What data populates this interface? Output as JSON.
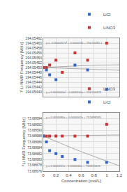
{
  "chart_data": [
    {
      "type": "scatter",
      "ylabel": "7-Li NMR Frequency [MHz]",
      "xlim": [
        0,
        1.2
      ],
      "xticks": [
        0,
        0.2,
        0.4,
        0.6,
        0.8,
        1,
        1.2
      ],
      "ylim": [
        194.05438,
        194.05462
      ],
      "yticks": [
        {
          "value": 194.0544,
          "label": "194.05440"
        },
        194.05442,
        194.05444,
        194.05446,
        194.05448,
        {
          "value": 194.0545,
          "label": "194.05450"
        },
        194.05452,
        194.05454,
        194.05456,
        194.05458,
        {
          "value": 194.0546,
          "label": "194.05460"
        },
        194.05462
      ],
      "tick_labels": "y",
      "grid": true,
      "legend": "right",
      "annotations": [
        "y = -0.0000057x² + 0.000016x + 194.55460·1",
        "y = 0.0000006x² - 0.0000100x + 194.554473"
      ],
      "series": [
        {
          "type": "line",
          "color": "#aaaaaa",
          "x": [
            0,
            0.1,
            0.2,
            0.3,
            0.4,
            0.5,
            0.6,
            0.7,
            0.8,
            0.9,
            1.0,
            1.1,
            1.2
          ],
          "values": [
            194.0545,
            194.054499006,
            194.054498024,
            194.054497054,
            194.054496096,
            194.05449515,
            194.054494216,
            194.054493294,
            194.054492384,
            194.054491486,
            194.0544906,
            194.054489726,
            194.054488864
          ]
        },
        {
          "type": "line",
          "color": "#aaaaaa",
          "x": [
            0,
            0.1,
            0.2,
            0.3,
            0.4,
            0.5,
            0.6,
            0.7,
            0.8,
            0.9,
            1.0,
            1.1,
            1.2
          ],
          "values": [
            194.0545,
            194.054501543,
            194.054502972,
            194.054504287,
            194.054505488,
            194.054506575,
            194.054507548,
            194.054508407,
            194.054509152,
            194.054509783,
            194.0545103,
            194.054510703,
            194.054510992
          ]
        },
        {
          "name": "LiCl",
          "type": "scatter",
          "marker": "square",
          "color": "#3366cc",
          "x": [
            0.0,
            0.05,
            0.1,
            0.2,
            0.5,
            0.7,
            1.0
          ],
          "values": [
            194.0545,
            194.05449,
            194.05447,
            194.05445,
            194.05451,
            194.05449,
            194.05441
          ]
        },
        {
          "name": "LiNO3",
          "type": "scatter",
          "marker": "square",
          "color": "#cc3333",
          "x": [
            0.0,
            0.05,
            0.1,
            0.2,
            0.3,
            0.5,
            0.7,
            1.0
          ],
          "values": [
            194.0545,
            194.0545,
            194.05451,
            194.05453,
            194.05448,
            194.05456,
            194.05453,
            194.0546
          ]
        }
      ]
    },
    {
      "type": "scatter",
      "ylabel": "⁶Li NMR Frequency [MHz]",
      "xlabel": "Concentration [mol/L]",
      "xlim": [
        0,
        1.2
      ],
      "xticks": [
        0,
        0.2,
        0.4,
        0.6,
        0.8,
        1,
        1.2
      ],
      "ylim": [
        73.68676,
        73.68696
      ],
      "yticks": [
        73.68676,
        73.68678,
        {
          "value": 73.6868,
          "label": "73.68680"
        },
        73.68682,
        73.68684,
        73.68686,
        73.68688,
        {
          "value": 73.6869,
          "label": "73.68690"
        },
        73.68692,
        73.68694
      ],
      "grid": true,
      "legend": "right",
      "annotations": [
        "y = 0.0000080x + 0.0000002x + 73.5696535",
        "y = 0.0000015x - 0.0000040x + 73.6655626"
      ],
      "series": [
        {
          "type": "line",
          "color": "#aaaaaa",
          "x": [
            0,
            0.1,
            0.2,
            0.3,
            0.4,
            0.5,
            0.6,
            0.7,
            0.8,
            0.9,
            1.0,
            1.1,
            1.2
          ],
          "values": [
            73.68688,
            73.68687068,
            73.68686152,
            73.68685252,
            73.68684368,
            73.686835,
            73.68682648,
            73.68681812,
            73.68680992,
            73.68680188,
            73.686794,
            73.68678628,
            73.68677872
          ]
        },
        {
          "type": "line",
          "color": "#aaaaaa",
          "x": [
            0,
            0.1,
            0.2,
            0.3,
            0.4,
            0.5,
            0.6,
            0.7,
            0.8,
            0.9,
            1.0,
            1.1,
            1.2
          ],
          "values": [
            73.68688,
            73.686880302,
            73.686880608,
            73.686880918,
            73.686881232,
            73.68688155,
            73.686881872,
            73.686882198,
            73.686882528,
            73.686882862,
            73.6868832,
            73.686883542,
            73.686883888
          ]
        },
        {
          "name": "LiNO3",
          "type": "scatter",
          "marker": "square",
          "color": "#cc3333",
          "x": [
            0.0,
            0.05,
            0.1,
            0.2,
            0.3,
            0.5,
            0.7,
            1.0
          ],
          "values": [
            73.68688,
            73.68688,
            73.68688,
            73.68688,
            73.68688,
            73.68688,
            73.68688,
            73.68692
          ]
        },
        {
          "name": "LiCl",
          "type": "scatter",
          "marker": "square",
          "color": "#3366cc",
          "x": [
            0.0,
            0.05,
            0.1,
            0.2,
            0.3,
            0.5,
            0.7,
            1.0
          ],
          "values": [
            73.68688,
            73.68686,
            73.68683,
            73.68682,
            73.68681,
            73.6868,
            73.68679,
            73.68679
          ]
        }
      ]
    }
  ]
}
